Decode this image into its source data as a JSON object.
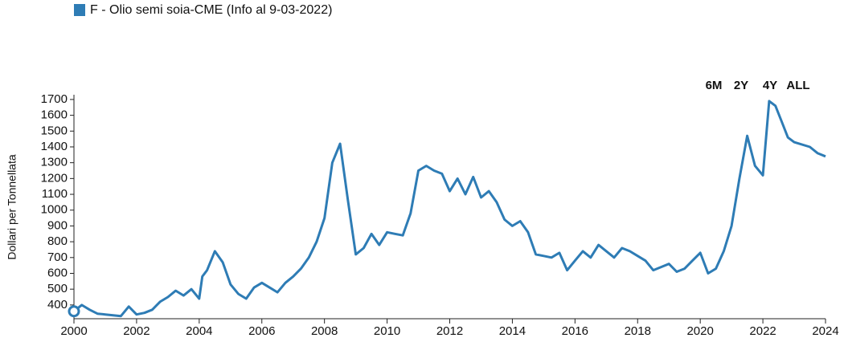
{
  "chart_data": {
    "type": "line",
    "legend": "F - Olio semi soia-CME (Info al 9-03-2022)",
    "y_label": "Dollari per Tonnellata",
    "buttons": [
      "6M",
      "2Y",
      "4Y",
      "ALL"
    ],
    "xlim": [
      2000,
      2024
    ],
    "xticks": [
      2000,
      2002,
      2004,
      2006,
      2008,
      2010,
      2012,
      2014,
      2016,
      2018,
      2020,
      2022,
      2024
    ],
    "ylim": [
      313,
      1730
    ],
    "yticks": [
      400,
      500,
      600,
      700,
      800,
      900,
      1000,
      1100,
      1200,
      1300,
      1400,
      1500,
      1600,
      1700
    ],
    "x": [
      2000,
      2000.25,
      2000.5,
      2000.75,
      2001,
      2001.25,
      2001.5,
      2001.75,
      2002,
      2002.25,
      2002.5,
      2002.75,
      2003,
      2003.25,
      2003.5,
      2003.75,
      2004,
      2004.1,
      2004.25,
      2004.5,
      2004.75,
      2005,
      2005.25,
      2005.5,
      2005.75,
      2006,
      2006.25,
      2006.5,
      2006.75,
      2007,
      2007.25,
      2007.5,
      2007.75,
      2008,
      2008.25,
      2008.5,
      2008.75,
      2009,
      2009.25,
      2009.5,
      2009.75,
      2010,
      2010.25,
      2010.5,
      2010.75,
      2011,
      2011.25,
      2011.5,
      2011.75,
      2012,
      2012.25,
      2012.5,
      2012.75,
      2013,
      2013.25,
      2013.5,
      2013.75,
      2014,
      2014.25,
      2014.5,
      2014.75,
      2015,
      2015.25,
      2015.5,
      2015.75,
      2016,
      2016.25,
      2016.5,
      2016.75,
      2017,
      2017.25,
      2017.5,
      2017.75,
      2018,
      2018.25,
      2018.5,
      2018.75,
      2019,
      2019.25,
      2019.5,
      2019.75,
      2020,
      2020.25,
      2020.5,
      2020.75,
      2021,
      2021.25,
      2021.5,
      2021.75,
      2022,
      2022.2,
      2022.4,
      2022.6,
      2022.8,
      2023,
      2023.5,
      2023.75,
      2024
    ],
    "series": [
      {
        "name": "F - Olio semi soia-CME (Info al 9-03-2022)",
        "color": "#2e7cb5",
        "values": [
          360,
          400,
          370,
          345,
          340,
          335,
          330,
          390,
          340,
          350,
          370,
          420,
          450,
          490,
          460,
          500,
          440,
          580,
          620,
          740,
          670,
          530,
          470,
          440,
          510,
          540,
          510,
          480,
          540,
          580,
          630,
          700,
          800,
          950,
          1300,
          1420,
          1060,
          720,
          760,
          850,
          780,
          860,
          850,
          840,
          980,
          1250,
          1280,
          1250,
          1230,
          1120,
          1200,
          1100,
          1210,
          1080,
          1120,
          1050,
          940,
          900,
          930,
          860,
          720,
          710,
          700,
          730,
          620,
          680,
          740,
          700,
          780,
          740,
          700,
          760,
          740,
          710,
          680,
          620,
          640,
          660,
          610,
          630,
          680,
          730,
          600,
          630,
          740,
          900,
          1200,
          1470,
          1280,
          1220,
          1690,
          1660,
          1560,
          1460,
          1430,
          1400,
          1360,
          1340
        ]
      }
    ]
  }
}
